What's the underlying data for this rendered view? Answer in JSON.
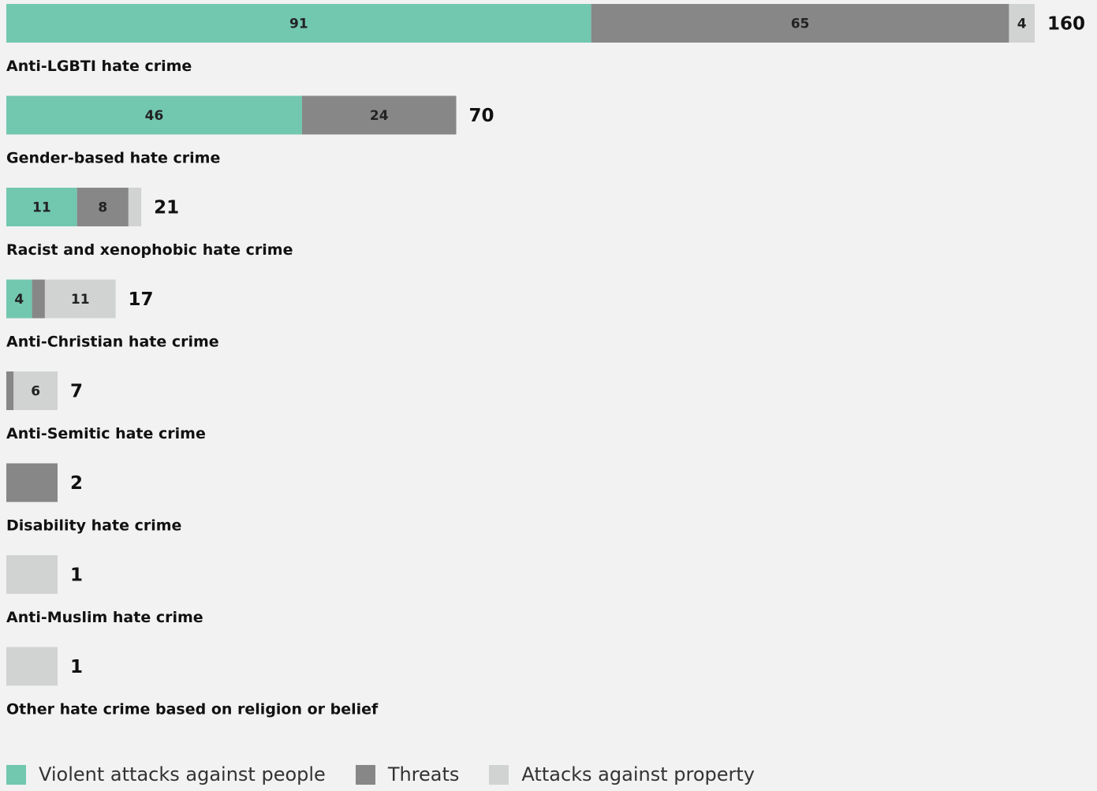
{
  "chart_data": {
    "type": "bar",
    "orientation": "horizontal",
    "stacked": true,
    "categories": [
      "Anti-LGBTI hate crime",
      "Gender-based hate crime",
      "Racist and xenophobic hate crime",
      "Anti-Christian hate crime",
      "Anti-Semitic hate crime",
      "Disability hate crime",
      "Anti-Muslim hate crime",
      "Other hate crime based on religion or belief"
    ],
    "series": [
      {
        "name": "Violent attacks against people",
        "color": "#72c7af",
        "values": [
          91,
          46,
          11,
          4,
          0,
          0,
          0,
          0
        ]
      },
      {
        "name": "Threats",
        "color": "#878787",
        "values": [
          65,
          24,
          8,
          2,
          1,
          2,
          0,
          0
        ]
      },
      {
        "name": "Attacks against property",
        "color": "#d0d3d2",
        "values": [
          4,
          0,
          2,
          11,
          6,
          0,
          1,
          1
        ]
      }
    ],
    "totals": [
      160,
      70,
      21,
      17,
      7,
      2,
      1,
      1
    ],
    "legend_position": "bottom-left",
    "grid": false
  },
  "legend": {
    "items": [
      {
        "label": "Violent attacks against people",
        "color": "#72c7af"
      },
      {
        "label": "Threats",
        "color": "#878787"
      },
      {
        "label": "Attacks against property",
        "color": "#d0d3d2"
      }
    ]
  }
}
